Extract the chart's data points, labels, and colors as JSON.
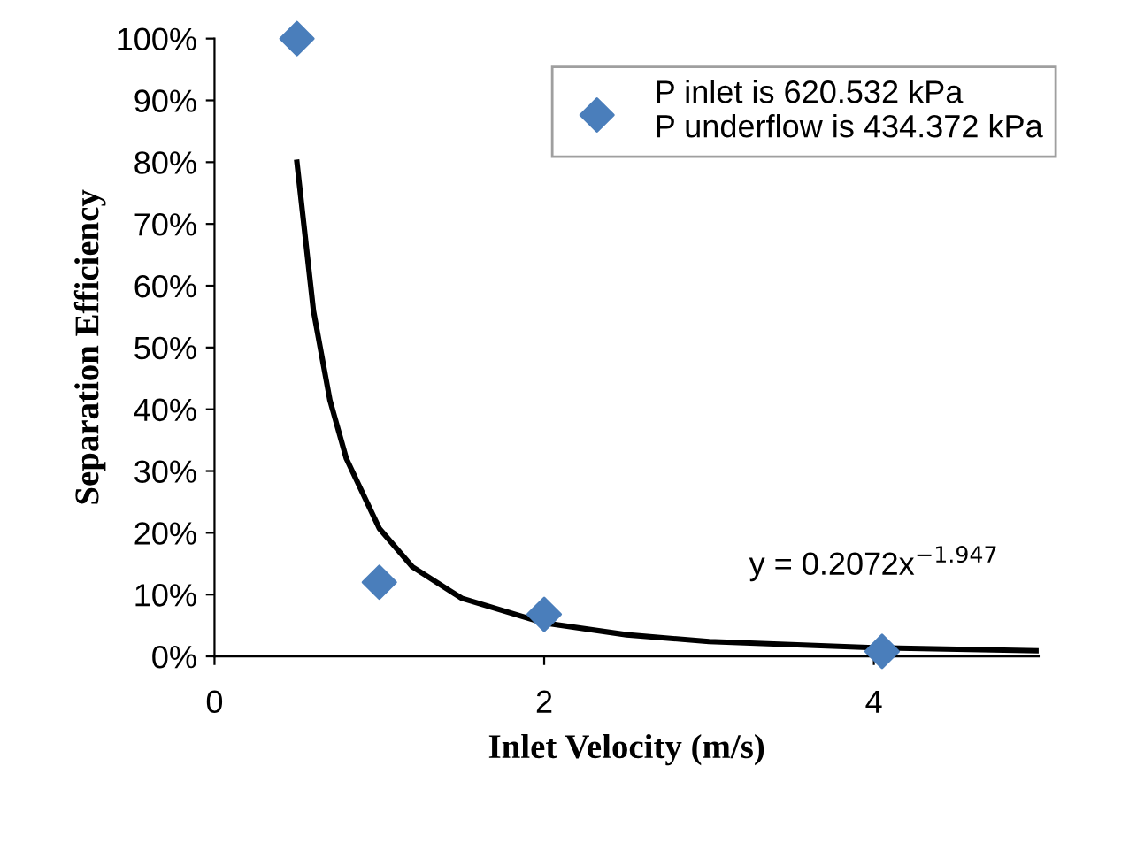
{
  "chart_data": {
    "type": "scatter",
    "xlabel": "Inlet Velocity (m/s)",
    "ylabel": "Separation Efficiency",
    "xlim": [
      0,
      5
    ],
    "xticks": [
      0,
      2,
      4
    ],
    "ylim": [
      0,
      100
    ],
    "yticks": [
      {
        "value": 0,
        "label": "0%"
      },
      {
        "value": 10,
        "label": "10%"
      },
      {
        "value": 20,
        "label": "20%"
      },
      {
        "value": 30,
        "label": "30%"
      },
      {
        "value": 40,
        "label": "40%"
      },
      {
        "value": 50,
        "label": "50%"
      },
      {
        "value": 60,
        "label": "60%"
      },
      {
        "value": 70,
        "label": "70%"
      },
      {
        "value": 80,
        "label": "80%"
      },
      {
        "value": 90,
        "label": "90%"
      },
      {
        "value": 100,
        "label": "100%"
      }
    ],
    "grid": false,
    "legend": "top right",
    "marker": "diamond",
    "series": [
      {
        "name": "P inlet is 620.532 kPa\nP underflow is 434.372 kPa",
        "color": "#4a7ebb",
        "x": [
          0.5,
          1,
          2,
          4.05
        ],
        "values": [
          100,
          12,
          6.8,
          0.8
        ]
      },
      {
        "type": "line",
        "color": "#000000",
        "line_style": "solid",
        "marker": "none",
        "x": [
          0.5,
          0.6,
          0.7,
          0.8,
          1,
          1.2,
          1.5,
          2,
          2.5,
          3,
          4,
          5
        ],
        "values": [
          80,
          56,
          41.5,
          32,
          20.7,
          14.5,
          9.4,
          5.4,
          3.5,
          2.4,
          1.4,
          0.9
        ]
      }
    ],
    "annotations": [
      "y = 0.2072x$^{−1.947}$"
    ]
  }
}
